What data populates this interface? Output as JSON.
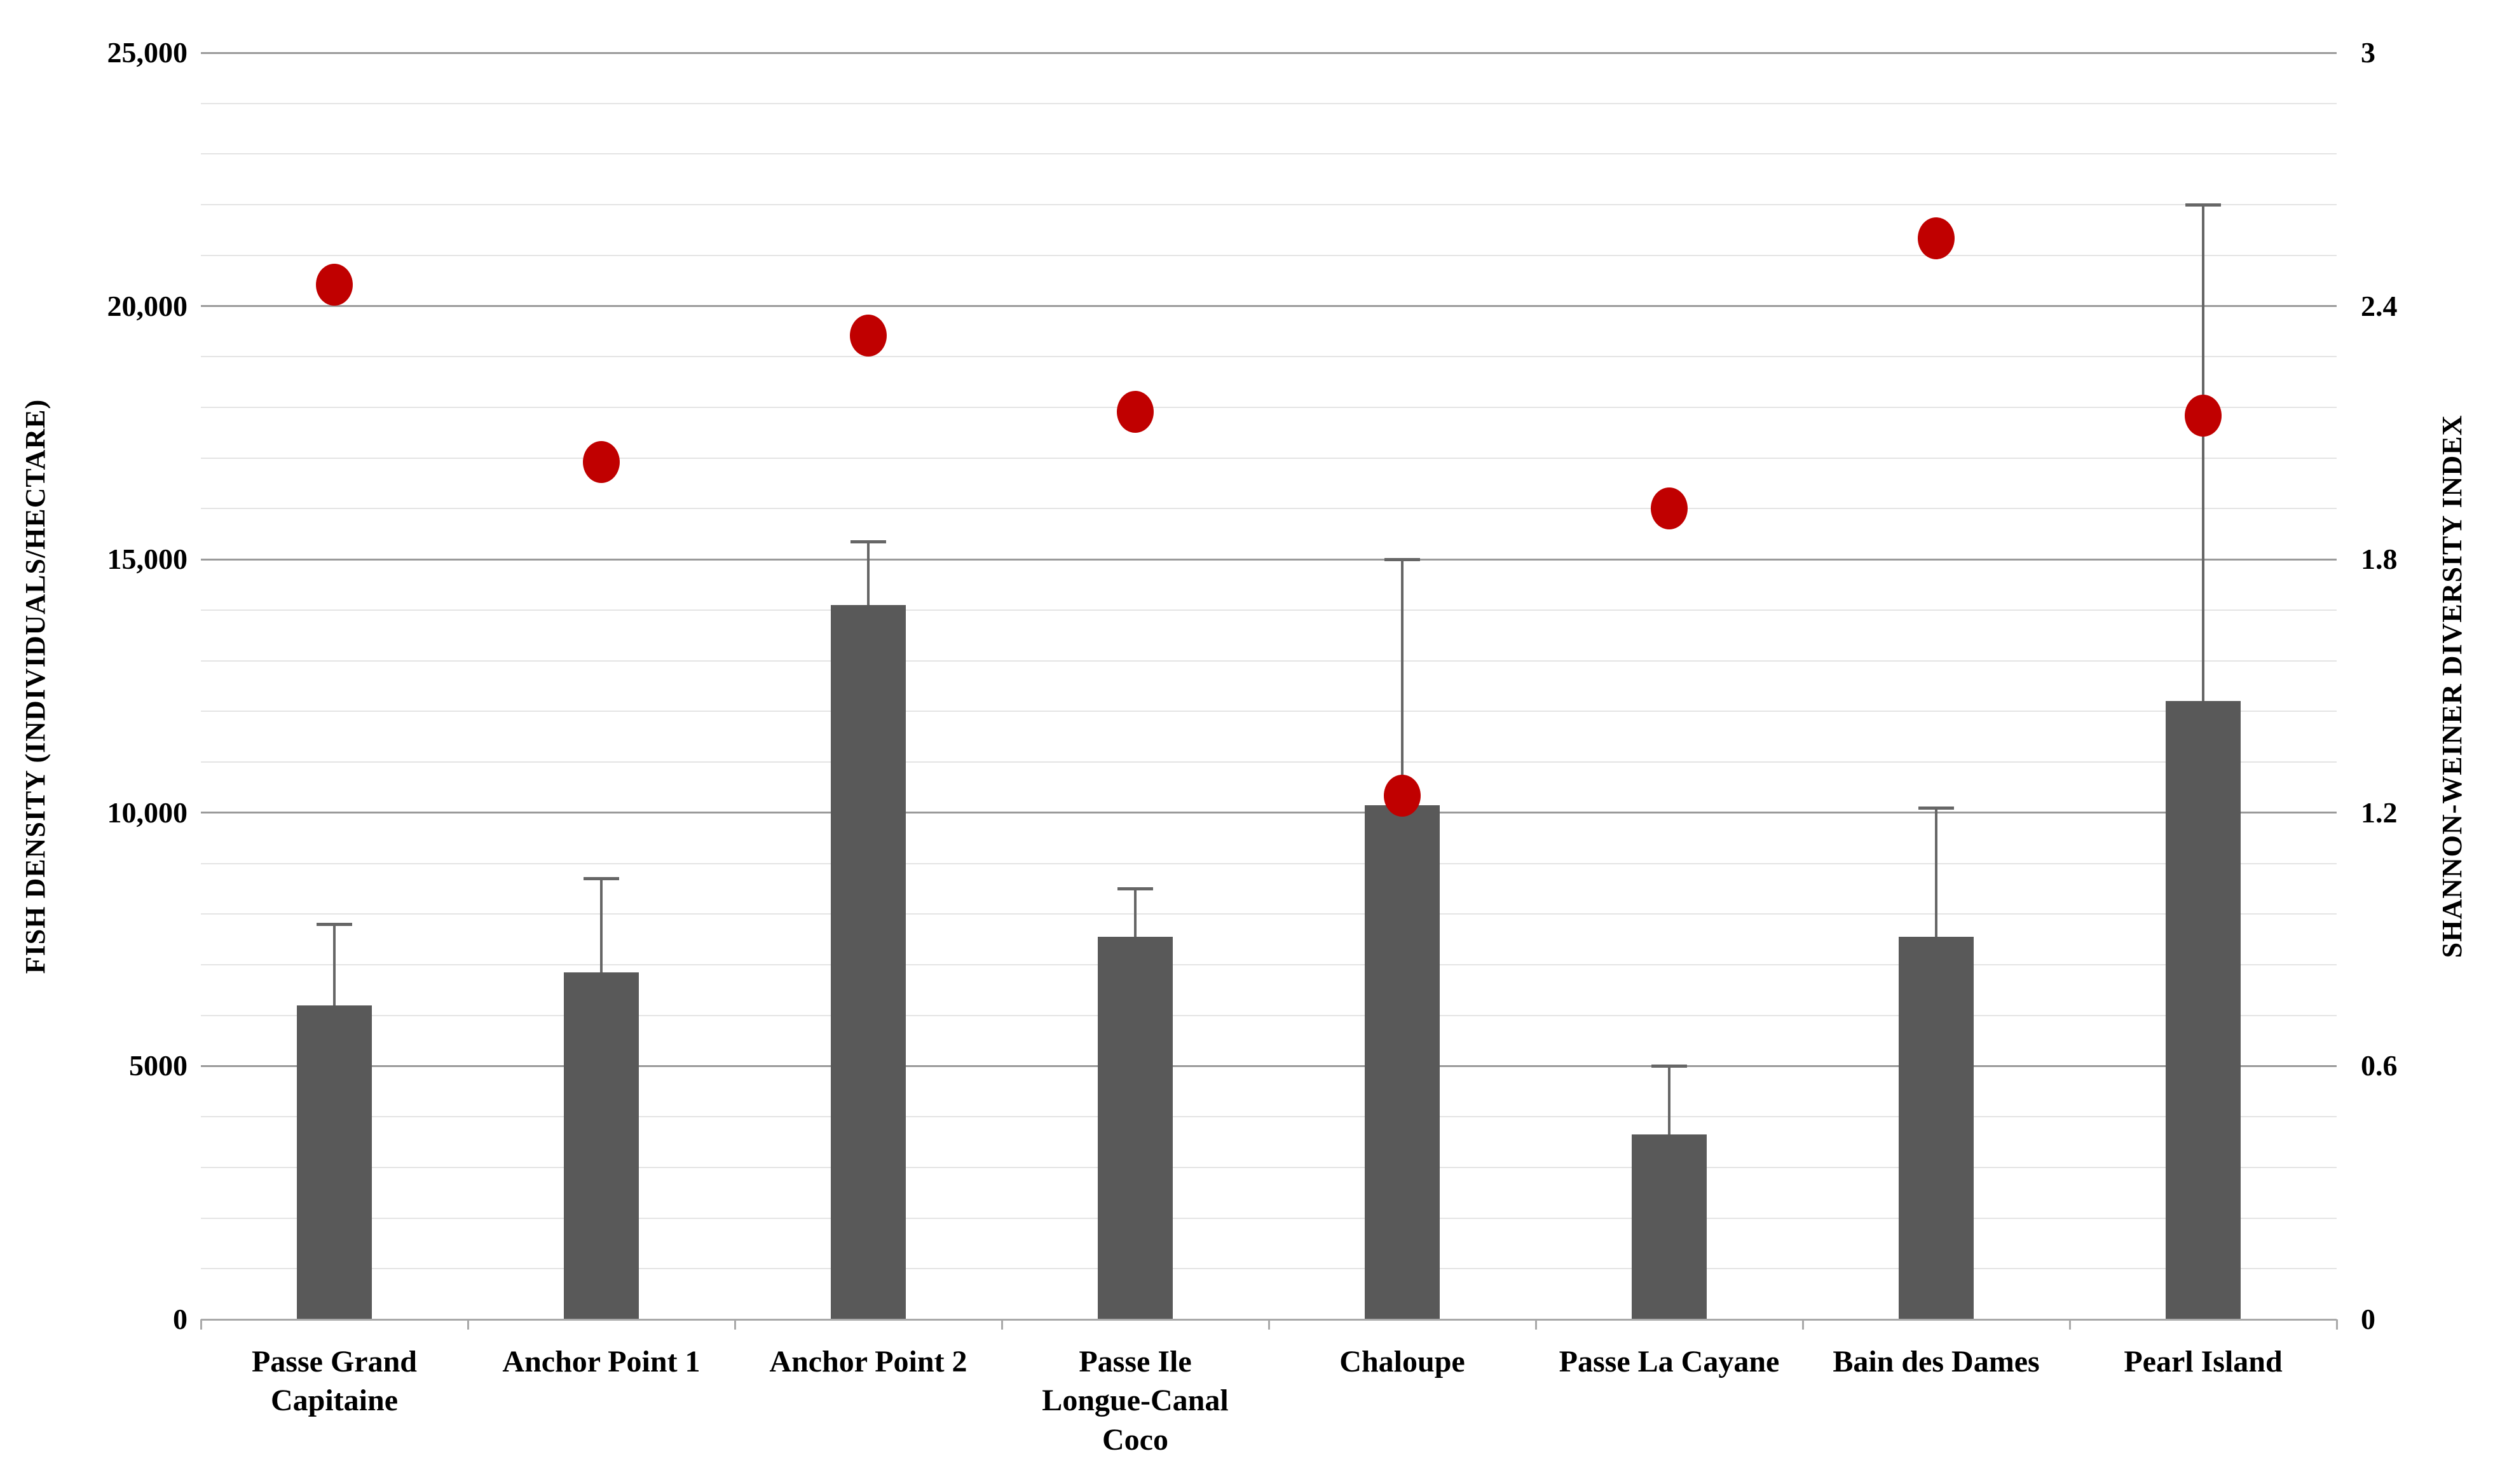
{
  "chart_data": {
    "type": "combo-bar-scatter",
    "title": "",
    "categories": [
      "Passe Grand Capitaine",
      "Anchor Point 1",
      "Anchor Point 2",
      "Passe Ile Longue-Canal Coco",
      "Chaloupe",
      "Passe La Cayane",
      "Bain des Dames",
      "Pearl Island"
    ],
    "category_label_lines": [
      [
        "Passe Grand",
        "Capitaine"
      ],
      [
        "Anchor Point 1"
      ],
      [
        "Anchor Point 2"
      ],
      [
        "Passe Ile",
        "Longue-Canal",
        "Coco"
      ],
      [
        "Chaloupe"
      ],
      [
        "Passe La Cayane"
      ],
      [
        "Bain des Dames"
      ],
      [
        "Pearl Island"
      ]
    ],
    "series": [
      {
        "name": "Fish density",
        "type": "bar",
        "axis": "left",
        "color": "#595959",
        "values": [
          6200,
          6850,
          14100,
          7550,
          10150,
          3650,
          7550,
          12200
        ],
        "error_plus": [
          1600,
          1850,
          1250,
          950,
          4850,
          1350,
          2550,
          9800
        ]
      },
      {
        "name": "Shannon-Weiner diversity index",
        "type": "scatter",
        "axis": "right",
        "color": "#C00000",
        "values": [
          2.45,
          2.03,
          2.33,
          2.15,
          1.24,
          1.92,
          2.56,
          2.14
        ]
      }
    ],
    "left_axis": {
      "title": "FISH DENSITY (INDIVIDUALS/HECTARE)",
      "min": 0,
      "max": 25000,
      "major_step": 5000,
      "minor_step": 1000,
      "tick_labels_top_down": [
        "25,000",
        "20,000",
        "15,000",
        "10,000",
        "5000",
        "0"
      ]
    },
    "right_axis": {
      "title": "SHANNON-WEINER DIVERSITY INDEX",
      "min": 0,
      "max": 3,
      "major_step": 0.6,
      "tick_labels_top_down": [
        "3",
        "2.4",
        "1.8",
        "1.2",
        "0.6",
        "0"
      ]
    },
    "grid": {
      "minor_on": true,
      "major_on": true
    },
    "legend": {
      "visible": false
    },
    "colors": {
      "bar": "#595959",
      "marker": "#C00000",
      "minor_grid": "#E4E4E4",
      "major_grid": "#9A9A9A",
      "axis_line": "#A9A9A9",
      "error_bar": "#666666",
      "text": "#000000",
      "background": "#FFFFFF"
    }
  }
}
